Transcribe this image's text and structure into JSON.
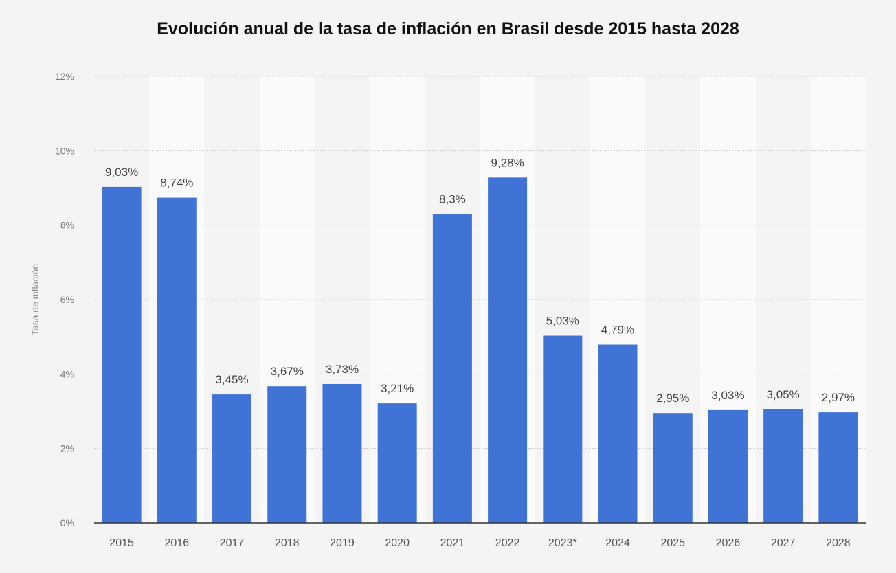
{
  "chart_data": {
    "type": "bar",
    "title": "Evolución anual de la tasa de inflación en Brasil desde 2015 hasta 2028",
    "xlabel": "",
    "ylabel": "Tasa de inflación",
    "ylim": [
      0,
      12
    ],
    "yticks": [
      "0%",
      "2%",
      "4%",
      "6%",
      "8%",
      "10%",
      "12%"
    ],
    "ytick_values": [
      0,
      2,
      4,
      6,
      8,
      10,
      12
    ],
    "grid": true,
    "categories": [
      "2015",
      "2016",
      "2017",
      "2018",
      "2019",
      "2020",
      "2021",
      "2022",
      "2023*",
      "2024",
      "2025",
      "2026",
      "2027",
      "2028"
    ],
    "values": [
      9.03,
      8.74,
      3.45,
      3.67,
      3.73,
      3.21,
      8.3,
      9.28,
      5.03,
      4.79,
      2.95,
      3.03,
      3.05,
      2.97
    ],
    "labels": [
      "9,03%",
      "8,74%",
      "3,45%",
      "3,67%",
      "3,73%",
      "3,21%",
      "8,3%",
      "9,28%",
      "5,03%",
      "4,79%",
      "2,95%",
      "3,03%",
      "3,05%",
      "2,97%"
    ],
    "colors": {
      "bar": "#3f74d6",
      "band_light": "#fafafa",
      "background": "#f4f4f4"
    }
  }
}
